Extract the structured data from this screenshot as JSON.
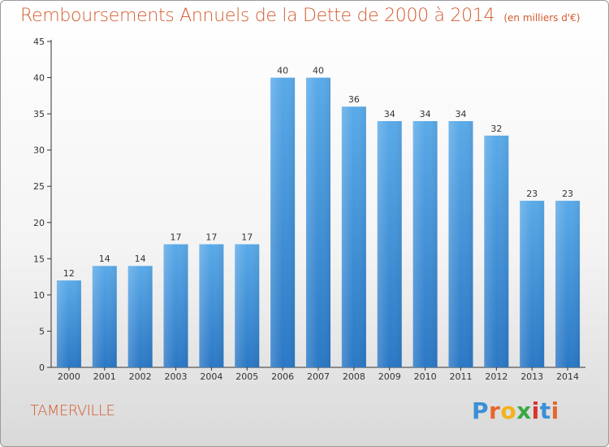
{
  "header": {
    "title": "Remboursements Annuels de la Dette de 2000 à 2014",
    "unit": "(en milliers d'€)"
  },
  "footer": {
    "city": "TAMERVILLE",
    "logo": "Proxiti"
  },
  "colors": {
    "accent": "#d45a2e",
    "bar_top": "#5aaae8",
    "bar_bottom": "#2b78c5"
  },
  "chart_data": {
    "type": "bar",
    "title": "Remboursements Annuels de la Dette de 2000 à 2014",
    "subtitle": "(en milliers d'€)",
    "xlabel": "",
    "ylabel": "",
    "categories": [
      "2000",
      "2001",
      "2002",
      "2003",
      "2004",
      "2005",
      "2006",
      "2007",
      "2008",
      "2009",
      "2010",
      "2011",
      "2012",
      "2013",
      "2014"
    ],
    "values": [
      12,
      14,
      14,
      17,
      17,
      17,
      40,
      40,
      36,
      34,
      34,
      34,
      32,
      23,
      23
    ],
    "ylim": [
      0,
      45
    ],
    "yticks": [
      0,
      5,
      10,
      15,
      20,
      25,
      30,
      35,
      40,
      45
    ],
    "grid": false,
    "legend": "none"
  }
}
